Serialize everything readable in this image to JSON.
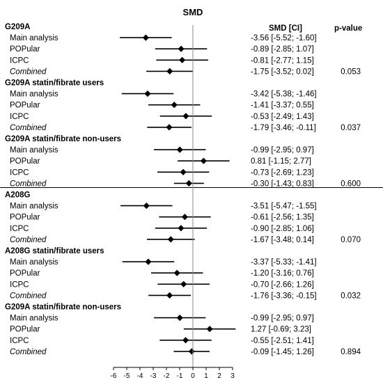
{
  "chart_data": {
    "type": "forest",
    "title": "SMD",
    "col_headers": {
      "ci": "SMD [CI]",
      "p": "p-value"
    },
    "xticks": [
      -6,
      -5,
      -4,
      -3,
      -2,
      -1,
      0,
      1,
      2,
      3
    ],
    "xlim": [
      -6,
      3
    ],
    "reference_line": 0,
    "groups": [
      {
        "title": "G209A",
        "p": "0.053",
        "rows": [
          {
            "label": "Main analysis",
            "est": -3.56,
            "lo": -5.52,
            "hi": -1.6,
            "ci_text": "-3.56 [-5.52; -1.60]",
            "italic": false
          },
          {
            "label": "POPular",
            "est": -0.89,
            "lo": -2.85,
            "hi": 1.07,
            "ci_text": "-0.89 [-2.85; 1.07]",
            "italic": false
          },
          {
            "label": "ICPC",
            "est": -0.81,
            "lo": -2.77,
            "hi": 1.15,
            "ci_text": "-0.81 [-2.77; 1.15]",
            "italic": false
          },
          {
            "label": "Combined",
            "est": -1.75,
            "lo": -3.52,
            "hi": 0.02,
            "ci_text": "-1.75 [-3.52; 0.02]",
            "italic": true
          }
        ]
      },
      {
        "title": "G209A statin/fibrate users",
        "p": "0.037",
        "rows": [
          {
            "label": "Main analysis",
            "est": -3.42,
            "lo": -5.38,
            "hi": -1.46,
            "ci_text": "-3.42 [-5.38; -1.46]",
            "italic": false
          },
          {
            "label": "POPular",
            "est": -1.41,
            "lo": -3.37,
            "hi": 0.55,
            "ci_text": "-1.41 [-3.37; 0.55]",
            "italic": false
          },
          {
            "label": "ICPC",
            "est": -0.53,
            "lo": -2.49,
            "hi": 1.43,
            "ci_text": "-0.53 [-2.49; 1.43]",
            "italic": false
          },
          {
            "label": "Combined",
            "est": -1.79,
            "lo": -3.46,
            "hi": -0.11,
            "ci_text": "-1.79 [-3.46; -0.11]",
            "italic": true
          }
        ]
      },
      {
        "title": "G209A statin/fibrate non-users",
        "p": "0.600",
        "rows": [
          {
            "label": "Main analysis",
            "est": -0.99,
            "lo": -2.95,
            "hi": 0.97,
            "ci_text": "-0.99 [-2.95; 0.97]",
            "italic": false
          },
          {
            "label": "POPular",
            "est": 0.81,
            "lo": -1.15,
            "hi": 2.77,
            "ci_text": "0.81 [-1.15; 2.77]",
            "italic": false
          },
          {
            "label": "ICPC",
            "est": -0.73,
            "lo": -2.69,
            "hi": 1.23,
            "ci_text": "-0.73 [-2.69; 1.23]",
            "italic": false
          },
          {
            "label": "Combined",
            "est": -0.3,
            "lo": -1.43,
            "hi": 0.83,
            "ci_text": "-0.30 [-1.43; 0.83]",
            "italic": true
          }
        ]
      },
      {
        "title": "A208G",
        "p": "0.070",
        "rows": [
          {
            "label": "Main analysis",
            "est": -3.51,
            "lo": -5.47,
            "hi": -1.55,
            "ci_text": "-3.51 [-5.47; -1.55]",
            "italic": false
          },
          {
            "label": "POPular",
            "est": -0.61,
            "lo": -2.56,
            "hi": 1.35,
            "ci_text": "-0.61 [-2.56; 1.35]",
            "italic": false
          },
          {
            "label": "ICPC",
            "est": -0.9,
            "lo": -2.85,
            "hi": 1.06,
            "ci_text": "-0.90 [-2.85; 1.06]",
            "italic": false
          },
          {
            "label": "Combined",
            "est": -1.67,
            "lo": -3.48,
            "hi": 0.14,
            "ci_text": "-1.67 [-3.48; 0.14]",
            "italic": true
          }
        ]
      },
      {
        "title": "A208G statin/fibrate users",
        "p": "0.032",
        "rows": [
          {
            "label": "Main analysis",
            "est": -3.37,
            "lo": -5.33,
            "hi": -1.41,
            "ci_text": "-3.37 [-5.33; -1.41]",
            "italic": false
          },
          {
            "label": "POPular",
            "est": -1.2,
            "lo": -3.16,
            "hi": 0.76,
            "ci_text": "-1.20 [-3.16; 0.76]",
            "italic": false
          },
          {
            "label": "ICPC",
            "est": -0.7,
            "lo": -2.66,
            "hi": 1.26,
            "ci_text": "-0.70 [-2.66; 1.26]",
            "italic": false
          },
          {
            "label": "Combined",
            "est": -1.76,
            "lo": -3.36,
            "hi": -0.15,
            "ci_text": "-1.76 [-3.36; -0.15]",
            "italic": true
          }
        ]
      },
      {
        "title": "G209A statin/fibrate non-users",
        "p": "0.894",
        "rows": [
          {
            "label": "Main analysis",
            "est": -0.99,
            "lo": -2.95,
            "hi": 0.97,
            "ci_text": "-0.99 [-2.95; 0.97]",
            "italic": false
          },
          {
            "label": "POPular",
            "est": 1.27,
            "lo": -0.69,
            "hi": 3.23,
            "ci_text": "1.27 [-0.69; 3.23]",
            "italic": false
          },
          {
            "label": "ICPC",
            "est": -0.55,
            "lo": -2.51,
            "hi": 1.41,
            "ci_text": "-0.55 [-2.51; 1.41]",
            "italic": false
          },
          {
            "label": "Combined",
            "est": -0.09,
            "lo": -1.45,
            "hi": 1.26,
            "ci_text": "-0.09 [-1.45; 1.26]",
            "italic": true
          }
        ]
      }
    ]
  }
}
